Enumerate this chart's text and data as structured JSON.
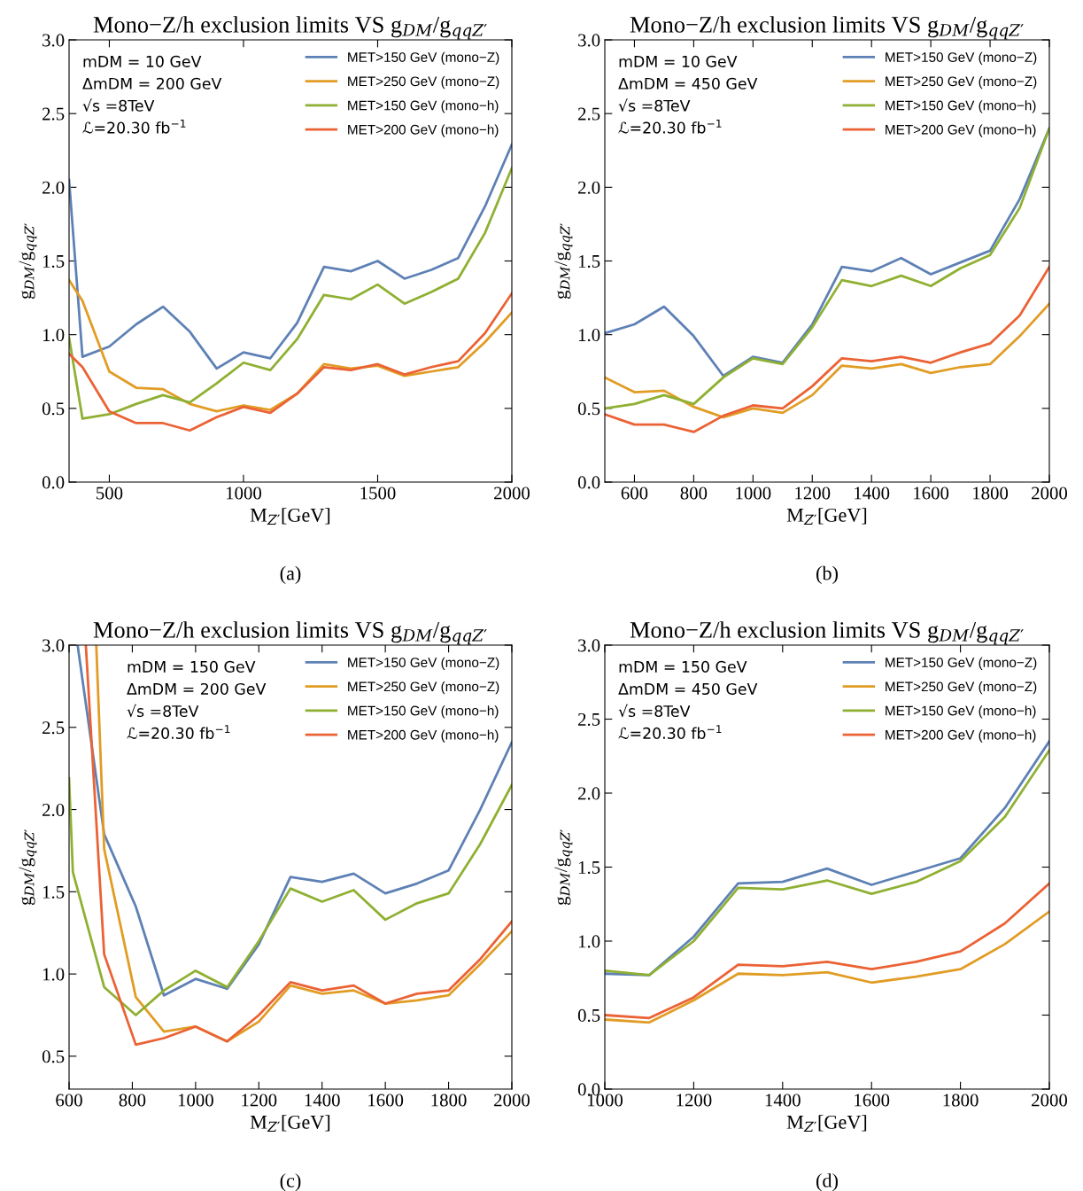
{
  "chart_data": [
    {
      "type": "line",
      "title": "Mono−Z/h exclusion limits VS g$_{DM}$/g$_{qqZ′}$",
      "xlabel": "M$_{Z′}$[GeV]",
      "ylabel": "g$_{DM}$/g$_{qqZ′}$",
      "annotations": [
        "mDM = 10 GeV",
        "ΔmDM = 200 GeV",
        "√s =8TeV",
        "ℒ=20.30 fb$^{−1}$",
        "(a)"
      ],
      "x": [
        350,
        400,
        500,
        600,
        700,
        800,
        900,
        1000,
        1100,
        1200,
        1300,
        1400,
        1500,
        1600,
        1700,
        1800,
        1900,
        2000
      ],
      "series": [
        {
          "name": "MET>150 GeV (mono−Z)",
          "color": "#5e81b5",
          "values": [
            2.05,
            0.85,
            0.92,
            1.07,
            1.19,
            1.02,
            0.77,
            0.88,
            0.84,
            1.08,
            1.46,
            1.43,
            1.5,
            1.38,
            1.44,
            1.52,
            1.87,
            2.29
          ]
        },
        {
          "name": "MET>250 GeV (mono−Z)",
          "color": "#e19c24",
          "values": [
            1.37,
            1.23,
            0.75,
            0.64,
            0.63,
            0.53,
            0.48,
            0.52,
            0.49,
            0.6,
            0.8,
            0.77,
            0.79,
            0.72,
            0.75,
            0.78,
            0.95,
            1.15
          ]
        },
        {
          "name": "MET>150 GeV (mono−h)",
          "color": "#8fb032",
          "values": [
            0.98,
            0.43,
            0.46,
            0.53,
            0.59,
            0.54,
            0.67,
            0.81,
            0.76,
            0.97,
            1.27,
            1.24,
            1.34,
            1.21,
            1.29,
            1.38,
            1.69,
            2.13
          ]
        },
        {
          "name": "MET>200 GeV (mono−h)",
          "color": "#eb6235",
          "values": [
            0.87,
            0.78,
            0.48,
            0.4,
            0.4,
            0.35,
            0.44,
            0.51,
            0.47,
            0.6,
            0.78,
            0.76,
            0.8,
            0.73,
            0.78,
            0.82,
            1.01,
            1.28
          ]
        }
      ],
      "xlim": [
        350,
        2000
      ],
      "xticks": [
        500,
        1000,
        1500,
        2000
      ],
      "ylim": [
        0,
        3
      ],
      "yticks": [
        {
          "value": 0,
          "label": "0.0"
        },
        {
          "value": 0.5,
          "label": "0.5"
        },
        {
          "value": 1,
          "label": "1.0"
        },
        {
          "value": 1.5,
          "label": "1.5"
        },
        {
          "value": 2,
          "label": "2.0"
        },
        {
          "value": 2.5,
          "label": "2.5"
        },
        {
          "value": 3,
          "label": "3.0"
        }
      ],
      "legend": "top right",
      "grid": false,
      "marker": "none",
      "line_style": "solid"
    },
    {
      "type": "line",
      "title": "Mono−Z/h exclusion limits VS g$_{DM}$/g$_{qqZ′}$",
      "xlabel": "M$_{Z′}$[GeV]",
      "ylabel": "g$_{DM}$/g$_{qqZ′}$",
      "annotations": [
        "mDM = 10 GeV",
        "ΔmDM = 450 GeV",
        "√s =8TeV",
        "ℒ=20.30 fb$^{−1}$",
        "(b)"
      ],
      "x": [
        500,
        600,
        700,
        800,
        900,
        1000,
        1100,
        1200,
        1300,
        1400,
        1500,
        1600,
        1700,
        1800,
        1900,
        2000
      ],
      "series": [
        {
          "name": "MET>150 GeV (mono−Z)",
          "color": "#5e81b5",
          "values": [
            1.01,
            1.07,
            1.19,
            0.99,
            0.72,
            0.85,
            0.81,
            1.07,
            1.46,
            1.43,
            1.52,
            1.41,
            1.49,
            1.57,
            1.92,
            2.4
          ]
        },
        {
          "name": "MET>250 GeV (mono−Z)",
          "color": "#e19c24",
          "values": [
            0.71,
            0.61,
            0.62,
            0.51,
            0.44,
            0.5,
            0.47,
            0.59,
            0.79,
            0.77,
            0.8,
            0.74,
            0.78,
            0.8,
            0.99,
            1.21
          ]
        },
        {
          "name": "MET>150 GeV (mono−h)",
          "color": "#8fb032",
          "values": [
            0.5,
            0.53,
            0.59,
            0.53,
            0.71,
            0.84,
            0.8,
            1.05,
            1.37,
            1.33,
            1.4,
            1.33,
            1.45,
            1.54,
            1.86,
            2.4
          ]
        },
        {
          "name": "MET>200 GeV (mono−h)",
          "color": "#eb6235",
          "values": [
            0.46,
            0.39,
            0.39,
            0.34,
            0.45,
            0.52,
            0.5,
            0.65,
            0.84,
            0.82,
            0.85,
            0.81,
            0.88,
            0.94,
            1.13,
            1.46
          ]
        }
      ],
      "xlim": [
        500,
        2000
      ],
      "xticks": [
        600,
        800,
        1000,
        1200,
        1400,
        1600,
        1800,
        2000
      ],
      "ylim": [
        0,
        3
      ],
      "yticks": [
        {
          "value": 0,
          "label": "0.0"
        },
        {
          "value": 0.5,
          "label": "0.5"
        },
        {
          "value": 1,
          "label": "1.0"
        },
        {
          "value": 1.5,
          "label": "1.5"
        },
        {
          "value": 2,
          "label": "2.0"
        },
        {
          "value": 2.5,
          "label": "2.5"
        },
        {
          "value": 3,
          "label": "3.0"
        }
      ],
      "legend": "top right",
      "grid": false,
      "marker": "none",
      "line_style": "solid"
    },
    {
      "type": "line",
      "title": "Mono−Z/h exclusion limits VS g$_{DM}$/g$_{qqZ′}$",
      "xlabel": "M$_{Z′}$[GeV]",
      "ylabel": "g$_{DM}$/g$_{qqZ′}$",
      "annotations": [
        "mDM = 150 GeV",
        "ΔmDM = 200 GeV",
        "√s =8TeV",
        "ℒ=20.30 fb$^{−1}$",
        "(c)"
      ],
      "series": [
        {
          "name": "MET>150 GeV (mono−Z)",
          "color": "#5e81b5",
          "x": [
            627,
            711,
            811,
            900,
            1000,
            1100,
            1200,
            1300,
            1400,
            1500,
            1600,
            1700,
            1800,
            1900,
            2000
          ],
          "values": [
            3.0,
            1.85,
            1.41,
            0.87,
            0.97,
            0.91,
            1.18,
            1.59,
            1.56,
            1.61,
            1.49,
            1.55,
            1.63,
            2.0,
            2.41
          ]
        },
        {
          "name": "MET>250 GeV (mono−Z)",
          "color": "#e19c24",
          "x": [
            686,
            711,
            811,
            900,
            1000,
            1100,
            1200,
            1300,
            1400,
            1500,
            1600,
            1700,
            1800,
            1900,
            2000
          ],
          "values": [
            3.0,
            1.76,
            0.86,
            0.65,
            0.68,
            0.59,
            0.71,
            0.93,
            0.88,
            0.9,
            0.82,
            0.84,
            0.87,
            1.06,
            1.26
          ]
        },
        {
          "name": "MET>150 GeV (mono−h)",
          "color": "#8fb032",
          "x": [
            600,
            612,
            711,
            811,
            900,
            1000,
            1100,
            1200,
            1300,
            1400,
            1500,
            1600,
            1700,
            1800,
            1900,
            2000
          ],
          "values": [
            2.19,
            1.62,
            0.92,
            0.75,
            0.9,
            1.02,
            0.92,
            1.2,
            1.52,
            1.44,
            1.51,
            1.33,
            1.43,
            1.49,
            1.79,
            2.15
          ]
        },
        {
          "name": "MET>200 GeV (mono−h)",
          "color": "#eb6235",
          "x": [
            653,
            711,
            811,
            900,
            1000,
            1100,
            1200,
            1300,
            1400,
            1500,
            1600,
            1700,
            1800,
            1900,
            2000
          ],
          "values": [
            3.0,
            1.12,
            0.57,
            0.61,
            0.68,
            0.59,
            0.75,
            0.95,
            0.9,
            0.93,
            0.82,
            0.88,
            0.9,
            1.09,
            1.32
          ]
        }
      ],
      "xlim": [
        600,
        2000
      ],
      "xticks": [
        600,
        800,
        1000,
        1200,
        1400,
        1600,
        1800,
        2000
      ],
      "ylim": [
        0.3,
        3
      ],
      "yticks": [
        {
          "value": 0.5,
          "label": "0.5"
        },
        {
          "value": 1,
          "label": "1.0"
        },
        {
          "value": 1.5,
          "label": "1.5"
        },
        {
          "value": 2,
          "label": "2.0"
        },
        {
          "value": 2.5,
          "label": "2.5"
        },
        {
          "value": 3,
          "label": "3.0"
        }
      ],
      "legend": "top right",
      "grid": false,
      "marker": "none",
      "line_style": "solid"
    },
    {
      "type": "line",
      "title": "Mono−Z/h exclusion limits VS g$_{DM}$/g$_{qqZ′}$",
      "xlabel": "M$_{Z′}$[GeV]",
      "ylabel": "g$_{DM}$/g$_{qqZ′}$",
      "annotations": [
        "mDM = 150 GeV",
        "ΔmDM = 450 GeV",
        "√s =8TeV",
        "ℒ=20.30 fb$^{−1}$",
        "(d)"
      ],
      "x": [
        1000,
        1100,
        1200,
        1300,
        1400,
        1500,
        1600,
        1700,
        1800,
        1900,
        2000
      ],
      "series": [
        {
          "name": "MET>150 GeV (mono−Z)",
          "color": "#5e81b5",
          "values": [
            0.78,
            0.77,
            1.03,
            1.39,
            1.4,
            1.49,
            1.38,
            1.47,
            1.56,
            1.9,
            2.35
          ]
        },
        {
          "name": "MET>250 GeV (mono−Z)",
          "color": "#e19c24",
          "values": [
            0.47,
            0.45,
            0.6,
            0.78,
            0.77,
            0.79,
            0.72,
            0.76,
            0.81,
            0.98,
            1.2
          ]
        },
        {
          "name": "MET>150 GeV (mono−h)",
          "color": "#8fb032",
          "values": [
            0.8,
            0.77,
            1.0,
            1.36,
            1.35,
            1.41,
            1.32,
            1.4,
            1.54,
            1.84,
            2.29
          ]
        },
        {
          "name": "MET>200 GeV (mono−h)",
          "color": "#eb6235",
          "values": [
            0.5,
            0.48,
            0.62,
            0.84,
            0.83,
            0.86,
            0.81,
            0.86,
            0.93,
            1.12,
            1.39
          ]
        }
      ],
      "xlim": [
        1000,
        2000
      ],
      "xticks": [
        1000,
        1200,
        1400,
        1600,
        1800,
        2000
      ],
      "ylim": [
        0,
        3
      ],
      "yticks": [
        {
          "value": 0,
          "label": "0.0"
        },
        {
          "value": 0.5,
          "label": "0.5"
        },
        {
          "value": 1,
          "label": "1.0"
        },
        {
          "value": 1.5,
          "label": "1.5"
        },
        {
          "value": 2,
          "label": "2.0"
        },
        {
          "value": 2.5,
          "label": "2.5"
        },
        {
          "value": 3,
          "label": "3.0"
        }
      ],
      "legend": "top right",
      "grid": false,
      "marker": "none",
      "line_style": "solid"
    }
  ]
}
